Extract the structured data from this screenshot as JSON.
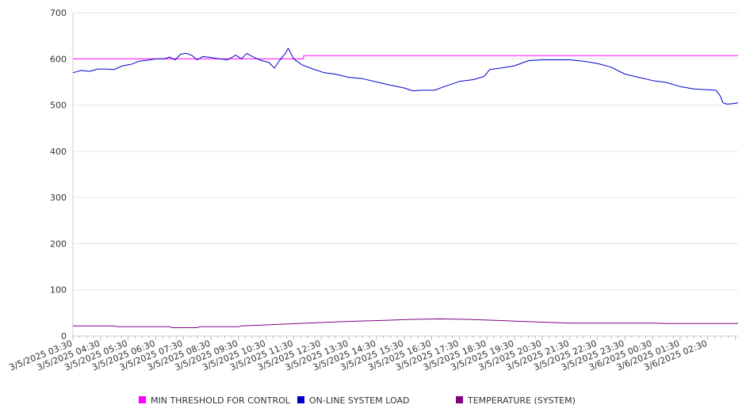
{
  "chart_data": {
    "type": "line",
    "ylim": [
      0,
      700
    ],
    "yticks": [
      0,
      100,
      200,
      300,
      400,
      500,
      600,
      700
    ],
    "grid": true,
    "legend_position": "bottom",
    "x_start_hour": 3.5,
    "x_end_hour": 27.6,
    "x_tick_labels": [
      "3/5/2025 03:30",
      "3/5/2025 04:30",
      "3/5/2025 05:30",
      "3/5/2025 06:30",
      "3/5/2025 07:30",
      "3/5/2025 08:30",
      "3/5/2025 09:30",
      "3/5/2025 10:30",
      "3/5/2025 11:30",
      "3/5/2025 12:30",
      "3/5/2025 13:30",
      "3/5/2025 14:30",
      "3/5/2025 15:30",
      "3/5/2025 16:30",
      "3/5/2025 17:30",
      "3/5/2025 18:30",
      "3/5/2025 19:30",
      "3/5/2025 20:30",
      "3/5/2025 21:30",
      "3/5/2025 22:30",
      "3/5/2025 23:30",
      "3/6/2025 00:30",
      "3/6/2025 01:30",
      "3/6/2025 02:30"
    ],
    "series": [
      {
        "name": "MIN THRESHOLD FOR CONTROL",
        "color": "#ff00ff",
        "points": [
          [
            3.5,
            600
          ],
          [
            11.85,
            600
          ],
          [
            11.86,
            607
          ],
          [
            27.6,
            607
          ]
        ]
      },
      {
        "name": "ON-LINE SYSTEM LOAD",
        "color": "#0000cc",
        "points": [
          [
            3.5,
            570
          ],
          [
            3.8,
            575
          ],
          [
            4.1,
            573
          ],
          [
            4.4,
            578
          ],
          [
            4.7,
            578
          ],
          [
            5.0,
            577
          ],
          [
            5.3,
            585
          ],
          [
            5.6,
            588
          ],
          [
            5.9,
            595
          ],
          [
            6.2,
            597
          ],
          [
            6.5,
            600
          ],
          [
            6.8,
            600
          ],
          [
            7.0,
            604
          ],
          [
            7.2,
            598
          ],
          [
            7.4,
            610
          ],
          [
            7.6,
            612
          ],
          [
            7.8,
            608
          ],
          [
            8.0,
            598
          ],
          [
            8.2,
            605
          ],
          [
            8.5,
            603
          ],
          [
            8.8,
            600
          ],
          [
            9.1,
            598
          ],
          [
            9.4,
            608
          ],
          [
            9.6,
            600
          ],
          [
            9.8,
            612
          ],
          [
            10.0,
            605
          ],
          [
            10.3,
            597
          ],
          [
            10.6,
            592
          ],
          [
            10.8,
            580
          ],
          [
            11.0,
            598
          ],
          [
            11.2,
            612
          ],
          [
            11.3,
            623
          ],
          [
            11.5,
            600
          ],
          [
            11.8,
            587
          ],
          [
            12.2,
            578
          ],
          [
            12.6,
            570
          ],
          [
            13.0,
            567
          ],
          [
            13.5,
            560
          ],
          [
            14.0,
            557
          ],
          [
            14.5,
            550
          ],
          [
            15.0,
            543
          ],
          [
            15.5,
            537
          ],
          [
            15.8,
            531
          ],
          [
            16.2,
            532
          ],
          [
            16.6,
            532
          ],
          [
            17.0,
            541
          ],
          [
            17.5,
            551
          ],
          [
            18.0,
            555
          ],
          [
            18.4,
            562
          ],
          [
            18.6,
            577
          ],
          [
            19.0,
            580
          ],
          [
            19.5,
            585
          ],
          [
            20.0,
            596
          ],
          [
            20.5,
            598
          ],
          [
            21.0,
            598
          ],
          [
            21.5,
            598
          ],
          [
            22.0,
            595
          ],
          [
            22.5,
            590
          ],
          [
            23.0,
            582
          ],
          [
            23.5,
            567
          ],
          [
            24.0,
            560
          ],
          [
            24.5,
            553
          ],
          [
            25.0,
            549
          ],
          [
            25.5,
            540
          ],
          [
            26.0,
            535
          ],
          [
            26.5,
            533
          ],
          [
            26.8,
            532
          ],
          [
            26.95,
            520
          ],
          [
            27.05,
            505
          ],
          [
            27.2,
            502
          ],
          [
            27.4,
            503
          ],
          [
            27.6,
            505
          ]
        ]
      },
      {
        "name": "TEMPERATURE (SYSTEM)",
        "color": "#800080",
        "points": [
          [
            3.5,
            22
          ],
          [
            5.0,
            22
          ],
          [
            5.1,
            20
          ],
          [
            7.0,
            20
          ],
          [
            7.1,
            18
          ],
          [
            8.0,
            18
          ],
          [
            8.1,
            20
          ],
          [
            9.5,
            20
          ],
          [
            9.6,
            22
          ],
          [
            10.5,
            24
          ],
          [
            11.3,
            26
          ],
          [
            12.0,
            28
          ],
          [
            12.8,
            30
          ],
          [
            13.8,
            32
          ],
          [
            14.8,
            34
          ],
          [
            15.8,
            36
          ],
          [
            16.8,
            37
          ],
          [
            17.8,
            36
          ],
          [
            18.8,
            34
          ],
          [
            19.5,
            32
          ],
          [
            20.5,
            30
          ],
          [
            21.5,
            28
          ],
          [
            23.0,
            28
          ],
          [
            24.5,
            28
          ],
          [
            25.0,
            27
          ],
          [
            25.5,
            27
          ],
          [
            27.6,
            27
          ]
        ]
      }
    ]
  }
}
